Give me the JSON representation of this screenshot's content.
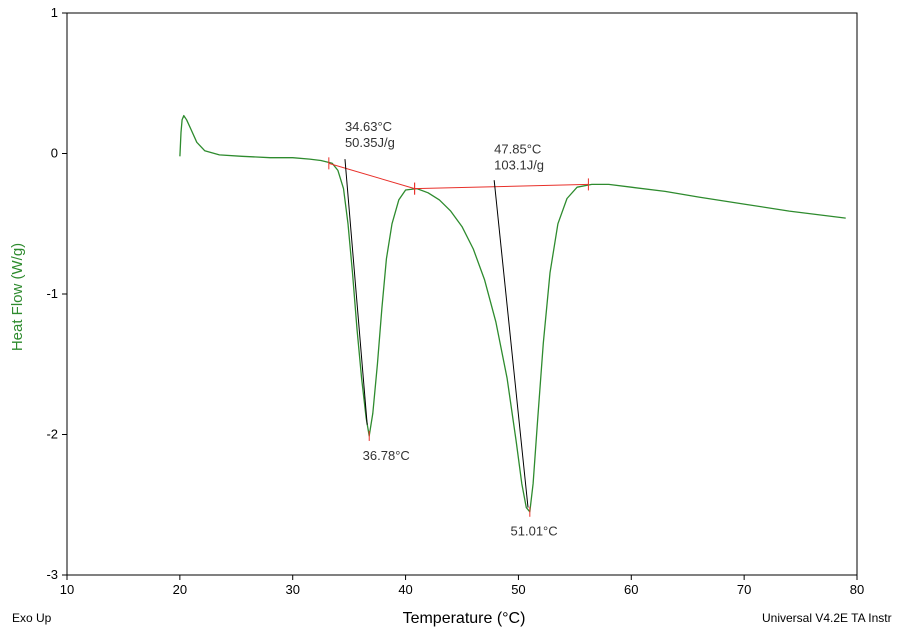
{
  "chart_data": {
    "type": "line",
    "xlabel": "Temperature (°C)",
    "ylabel": "Heat Flow (W/g)",
    "xlim": [
      10,
      80
    ],
    "ylim": [
      -3,
      1
    ],
    "x_ticks": [
      10,
      20,
      30,
      40,
      50,
      60,
      70,
      80
    ],
    "y_ticks": [
      1,
      0,
      -1,
      -2,
      -3
    ],
    "grid": false,
    "colors": {
      "curve": "#2e8b2e",
      "baseline": "#e8302a",
      "tangent": "#000000",
      "ylabel": "#2e8b2e"
    },
    "series": [
      {
        "values_x": [
          20.0,
          20.1,
          20.2,
          20.35,
          20.6,
          21.0,
          21.5,
          22.2,
          23.5,
          25.5,
          28,
          30,
          31.5,
          32.5,
          33.5,
          34.0,
          34.5,
          34.9,
          35.3,
          35.7,
          36.1,
          36.5,
          36.78,
          37.1,
          37.5,
          37.9,
          38.3,
          38.8,
          39.4,
          40.0,
          41.0,
          42,
          43,
          44,
          45,
          46,
          47,
          48,
          49,
          49.8,
          50.3,
          50.7,
          51.01,
          51.3,
          51.7,
          52.2,
          52.8,
          53.5,
          54.3,
          55.2,
          56.5,
          58,
          60,
          63,
          66,
          70,
          74,
          79
        ],
        "values_y": [
          -0.02,
          0.15,
          0.24,
          0.27,
          0.24,
          0.17,
          0.08,
          0.02,
          -0.01,
          -0.02,
          -0.03,
          -0.03,
          -0.04,
          -0.05,
          -0.07,
          -0.12,
          -0.25,
          -0.5,
          -0.85,
          -1.25,
          -1.6,
          -1.88,
          -2.01,
          -1.85,
          -1.5,
          -1.1,
          -0.75,
          -0.5,
          -0.33,
          -0.26,
          -0.25,
          -0.28,
          -0.33,
          -0.41,
          -0.52,
          -0.68,
          -0.9,
          -1.2,
          -1.6,
          -2.05,
          -2.35,
          -2.52,
          -2.55,
          -2.35,
          -1.9,
          -1.35,
          -0.85,
          -0.5,
          -0.32,
          -0.24,
          -0.22,
          -0.22,
          -0.24,
          -0.27,
          -0.31,
          -0.36,
          -0.41,
          -0.46
        ]
      }
    ],
    "baselines": [
      {
        "x": [
          33.2,
          40.8
        ],
        "y": [
          -0.07,
          -0.25
        ]
      },
      {
        "x": [
          40.8,
          56.2
        ],
        "y": [
          -0.25,
          -0.22
        ]
      }
    ],
    "tangents": [
      {
        "x": [
          34.63,
          36.6
        ],
        "y": [
          -0.04,
          -1.93
        ]
      },
      {
        "x": [
          47.85,
          50.85
        ],
        "y": [
          -0.19,
          -2.52
        ]
      }
    ],
    "annotations": [
      {
        "x": 34.63,
        "y": 0.16,
        "lines": [
          "34.63°C",
          "50.35J/g"
        ]
      },
      {
        "x": 47.85,
        "y": 0.0,
        "lines": [
          "47.85°C",
          "103.1J/g"
        ]
      },
      {
        "x": 36.2,
        "y": -2.18,
        "lines": [
          "36.78°C"
        ]
      },
      {
        "x": 49.3,
        "y": -2.72,
        "lines": [
          "51.01°C"
        ]
      }
    ]
  },
  "footer": {
    "left": "Exo Up",
    "right": "Universal V4.2E TA Instr"
  }
}
